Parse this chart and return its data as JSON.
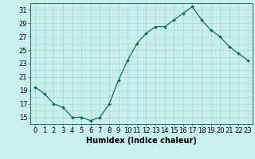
{
  "x": [
    0,
    1,
    2,
    3,
    4,
    5,
    6,
    7,
    8,
    9,
    10,
    11,
    12,
    13,
    14,
    15,
    16,
    17,
    18,
    19,
    20,
    21,
    22,
    23
  ],
  "y": [
    19.5,
    18.5,
    17.0,
    16.5,
    15.0,
    15.0,
    14.5,
    15.0,
    17.0,
    20.5,
    23.5,
    26.0,
    27.5,
    28.5,
    28.5,
    29.5,
    30.5,
    31.5,
    29.5,
    28.0,
    27.0,
    25.5,
    24.5,
    23.5
  ],
  "line_color": "#1a6b5a",
  "marker_color": "#1a6b5a",
  "bg_color": "#c8eeee",
  "grid_color": "#a8d8d8",
  "xlabel": "Humidex (Indice chaleur)",
  "xlim": [
    -0.5,
    23.5
  ],
  "ylim": [
    14.0,
    32.0
  ],
  "yticks": [
    15,
    17,
    19,
    21,
    23,
    25,
    27,
    29,
    31
  ],
  "xticks": [
    0,
    1,
    2,
    3,
    4,
    5,
    6,
    7,
    8,
    9,
    10,
    11,
    12,
    13,
    14,
    15,
    16,
    17,
    18,
    19,
    20,
    21,
    22,
    23
  ],
  "font_size": 6.0,
  "xlabel_fontsize": 7.0,
  "spine_color": "#336666",
  "tick_color": "#336666"
}
